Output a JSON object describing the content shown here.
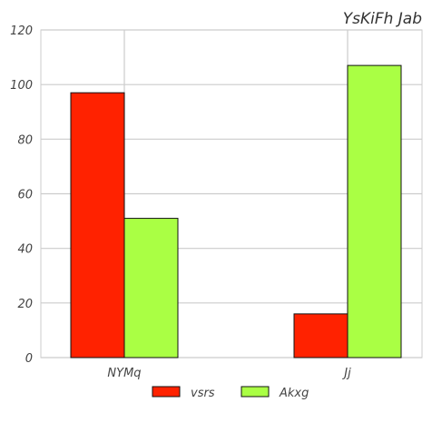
{
  "chart_data": {
    "type": "bar",
    "title": "YsKiFh  Jab",
    "xlabel": "",
    "ylabel": "",
    "categories": [
      "NYMq",
      "Jj"
    ],
    "series": [
      {
        "name": "vsrs",
        "values": [
          97,
          16
        ],
        "color": "#ff2200"
      },
      {
        "name": "Akxg",
        "values": [
          51,
          107
        ],
        "color": "#aaff44"
      }
    ],
    "ylim": [
      0,
      120
    ],
    "yticks": [
      0,
      20,
      40,
      60,
      80,
      100,
      120
    ],
    "grid": true,
    "legend_position": "bottom-center"
  }
}
